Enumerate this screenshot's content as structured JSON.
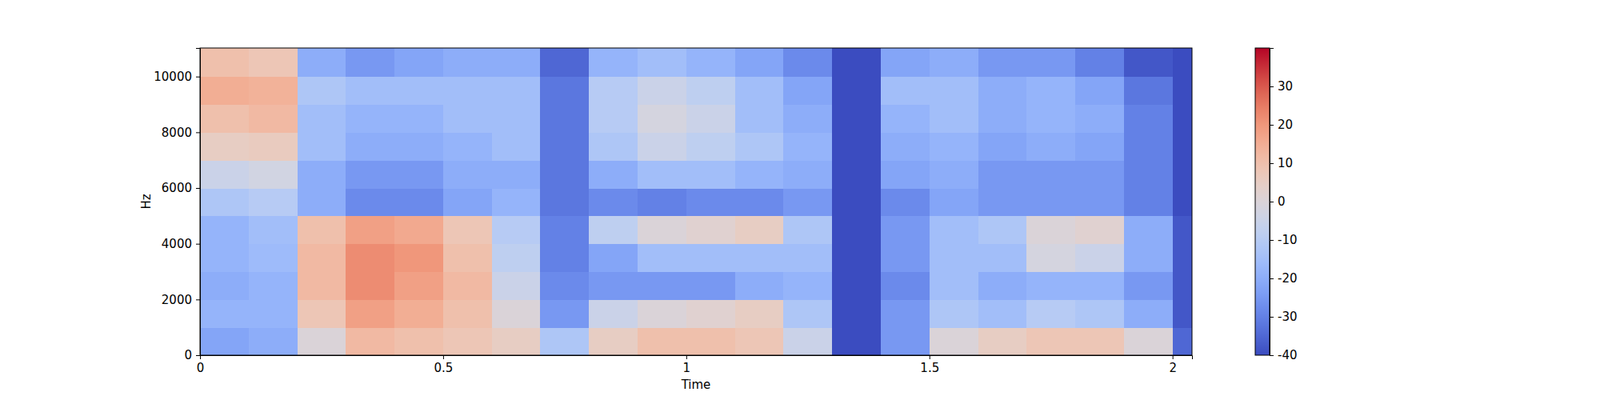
{
  "chart_data": {
    "type": "heatmap",
    "xlabel": "Time",
    "ylabel": "Hz",
    "xlim": [
      0,
      2.04
    ],
    "ylim": [
      0,
      11025
    ],
    "xticks": [
      0,
      0.5,
      1,
      1.5,
      2
    ],
    "yticks": [
      0,
      2000,
      4000,
      6000,
      8000,
      10000
    ],
    "x_bins": [
      0,
      0.1,
      0.2,
      0.3,
      0.4,
      0.5,
      0.6,
      0.7,
      0.8,
      0.9,
      1.0,
      1.1,
      1.2,
      1.3,
      1.4,
      1.5,
      1.6,
      1.7,
      1.8,
      1.9,
      2.0,
      2.04
    ],
    "y_bins": [
      0,
      1000,
      2000,
      3000,
      4000,
      5000,
      6000,
      7000,
      8000,
      9000,
      10000,
      11025
    ],
    "cells": [
      [
        -22,
        -20,
        0,
        12,
        10,
        8,
        5,
        -12,
        5,
        10,
        10,
        8,
        -5,
        -40,
        -25,
        0,
        5,
        8,
        8,
        0,
        -35
      ],
      [
        -18,
        -18,
        8,
        18,
        15,
        10,
        0,
        -25,
        -5,
        0,
        2,
        5,
        -12,
        -40,
        -25,
        -12,
        -15,
        -10,
        -12,
        -20,
        -38
      ],
      [
        -20,
        -18,
        12,
        22,
        18,
        12,
        -5,
        -28,
        -25,
        -25,
        -25,
        -20,
        -18,
        -40,
        -28,
        -15,
        -20,
        -18,
        -18,
        -25,
        -38
      ],
      [
        -18,
        -16,
        12,
        22,
        20,
        10,
        -8,
        -30,
        -22,
        -15,
        -15,
        -15,
        -15,
        -40,
        -25,
        -15,
        -15,
        -2,
        -5,
        -20,
        -38
      ],
      [
        -18,
        -15,
        10,
        18,
        16,
        8,
        -10,
        -30,
        -8,
        0,
        2,
        5,
        -12,
        -40,
        -25,
        -15,
        -12,
        0,
        2,
        -20,
        -38
      ],
      [
        -12,
        -10,
        -20,
        -28,
        -28,
        -22,
        -18,
        -32,
        -28,
        -30,
        -28,
        -28,
        -25,
        -40,
        -28,
        -22,
        -25,
        -25,
        -25,
        -30,
        -40
      ],
      [
        -5,
        -3,
        -20,
        -25,
        -25,
        -20,
        -20,
        -32,
        -20,
        -15,
        -15,
        -18,
        -20,
        -40,
        -22,
        -20,
        -25,
        -25,
        -25,
        -30,
        -40
      ],
      [
        5,
        6,
        -15,
        -20,
        -20,
        -18,
        -15,
        -32,
        -12,
        -5,
        -8,
        -12,
        -18,
        -40,
        -20,
        -18,
        -22,
        -20,
        -22,
        -30,
        -40
      ],
      [
        10,
        12,
        -15,
        -18,
        -18,
        -15,
        -15,
        -32,
        -10,
        -2,
        -5,
        -15,
        -20,
        -40,
        -18,
        -15,
        -20,
        -18,
        -20,
        -30,
        -40
      ],
      [
        15,
        14,
        -12,
        -15,
        -15,
        -15,
        -15,
        -32,
        -10,
        -5,
        -8,
        -15,
        -22,
        -40,
        -15,
        -15,
        -20,
        -18,
        -22,
        -32,
        -40
      ],
      [
        10,
        8,
        -20,
        -25,
        -22,
        -20,
        -20,
        -35,
        -18,
        -15,
        -18,
        -22,
        -28,
        -40,
        -22,
        -20,
        -25,
        -25,
        -30,
        -38,
        -40
      ]
    ],
    "colorbar": {
      "lim": [
        -40,
        40
      ],
      "ticks": [
        -40,
        -30,
        -20,
        -10,
        0,
        10,
        20,
        30
      ]
    }
  }
}
